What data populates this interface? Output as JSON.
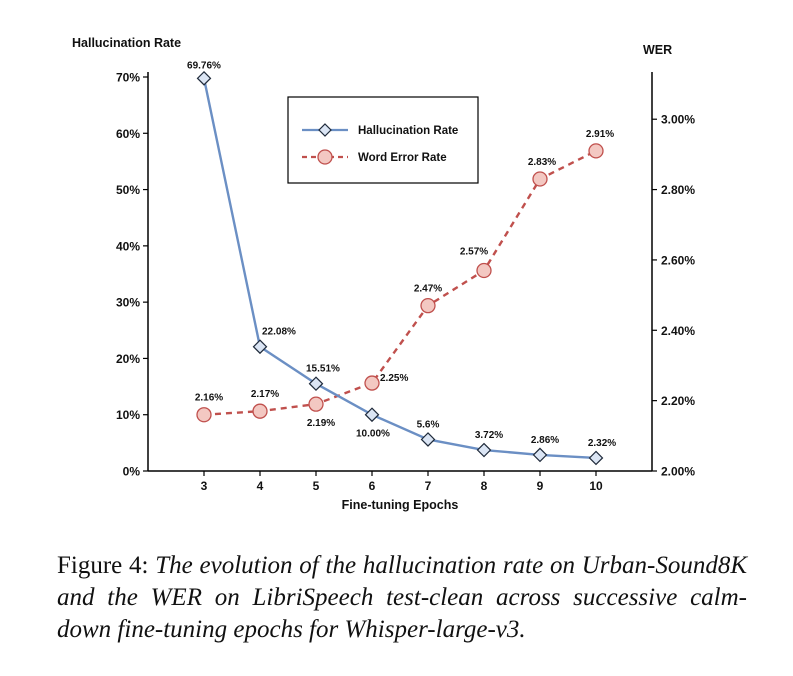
{
  "chart_data": {
    "type": "line",
    "title": "",
    "xlabel": "Fine-tuning Epochs",
    "ylabel_left": "Hallucination Rate",
    "ylabel_right": "WER",
    "x": [
      3,
      4,
      5,
      6,
      7,
      8,
      9,
      10
    ],
    "ylim_left": [
      0,
      70
    ],
    "ylim_right": [
      2.0,
      3.12
    ],
    "yticks_left": [
      "0%",
      "10%",
      "20%",
      "30%",
      "40%",
      "50%",
      "60%",
      "70%"
    ],
    "yticks_right": [
      "2.00%",
      "2.20%",
      "2.40%",
      "2.60%",
      "2.80%",
      "3.00%"
    ],
    "legend_position": "top-center",
    "grid": false,
    "series": [
      {
        "name": "Hallucination Rate",
        "axis": "left",
        "color": "#6b8fc4",
        "marker": "diamond",
        "line": "solid",
        "values": [
          69.76,
          22.08,
          15.51,
          10.0,
          5.6,
          3.72,
          2.86,
          2.32
        ],
        "labels": [
          "69.76%",
          "22.08%",
          "15.51%",
          "10.00%",
          "5.6%",
          "3.72%",
          "2.86%",
          "2.32%"
        ]
      },
      {
        "name": "Word Error Rate",
        "axis": "right",
        "color": "#c0504d",
        "marker": "circle",
        "line": "dashed",
        "values": [
          2.16,
          2.17,
          2.19,
          2.25,
          2.47,
          2.57,
          2.83,
          2.91
        ],
        "labels": [
          "2.16%",
          "2.17%",
          "2.19%",
          "2.25%",
          "2.47%",
          "2.57%",
          "2.83%",
          "2.91%"
        ]
      }
    ]
  },
  "caption": {
    "prefix": "Figure 4: ",
    "text": "The evolution of the hallucination rate on Urban-Sound8K and the WER on LibriSpeech test-clean across successive calm-down fine-tuning epochs for Whisper-large-v3."
  }
}
